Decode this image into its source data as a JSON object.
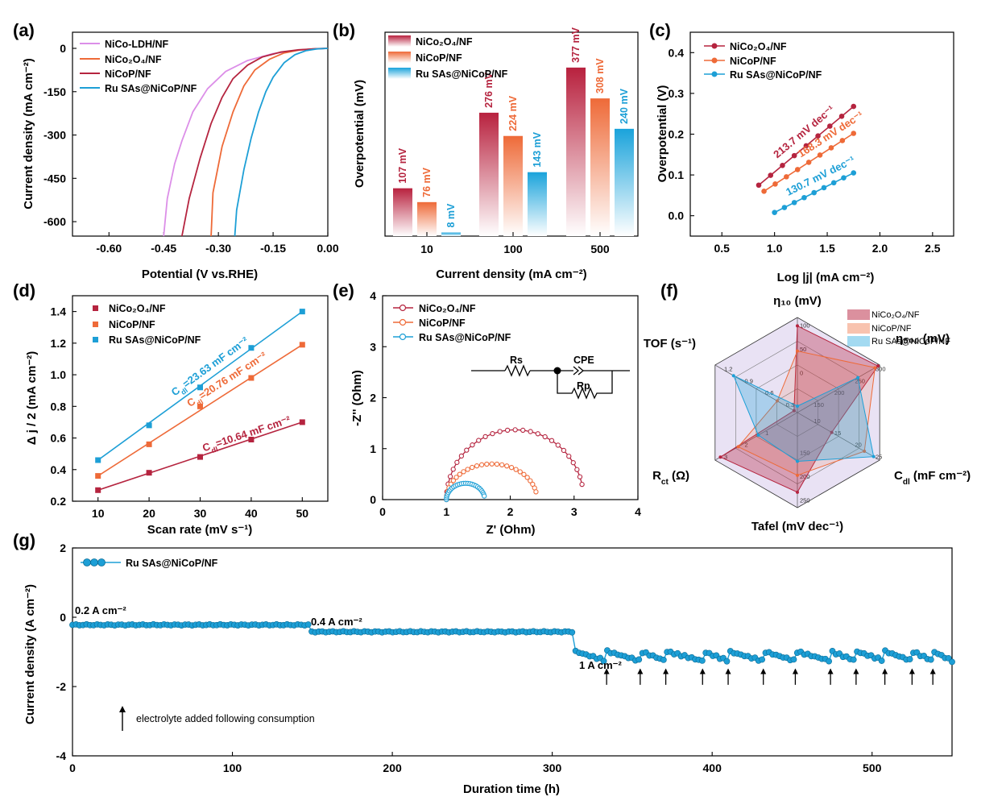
{
  "colors": {
    "nico2o4": "#b5243f",
    "nicop": "#ee6a38",
    "ru": "#1d9fd6",
    "ldh": "#dc8fe8"
  },
  "panels": {
    "a": {
      "label": "(a)",
      "xlabel": "Potential (V vs.RHE)",
      "ylabel": "Current density (mA cm⁻²)",
      "legend": [
        "NiCo-LDH/NF",
        "NiCo₂O₄/NF",
        "NiCoP/NF",
        "Ru SAs@NiCoP/NF"
      ]
    },
    "b": {
      "label": "(b)",
      "xlabel": "Current density (mA cm⁻²)",
      "ylabel": "Overpotential (mV)",
      "legend": [
        "NiCo₂O₄/NF",
        "NiCoP/NF",
        "Ru SAs@NiCoP/NF"
      ]
    },
    "c": {
      "label": "(c)",
      "xlabel": "Log |j| (mA cm⁻²)",
      "ylabel": "Overpotential (V)",
      "legend": [
        "NiCo₂O₄/NF",
        "NiCoP/NF",
        "Ru SAs@NiCoP/NF"
      ]
    },
    "d": {
      "label": "(d)",
      "xlabel": "Scan rate (mV s⁻¹)",
      "ylabel": "Δ j / 2 (mA cm⁻²)",
      "legend": [
        "NiCo₂O₄/NF",
        "NiCoP/NF",
        "Ru SAs@NiCoP/NF"
      ]
    },
    "e": {
      "label": "(e)",
      "xlabel": "Z' (Ohm)",
      "ylabel": "-Z'' (Ohm)",
      "legend": [
        "NiCo₂O₄/NF",
        "NiCoP/NF",
        "Ru SAs@NiCoP/NF"
      ],
      "circuit": {
        "rs": "Rs",
        "cpe": "CPE",
        "rp": "Rp"
      }
    },
    "f": {
      "label": "(f)",
      "legend": [
        "NiCo₂O₄/NF",
        "NiCoP/NF",
        "Ru SAs@NiCoP/NF"
      ]
    },
    "g": {
      "label": "(g)",
      "xlabel": "Duration time (h)",
      "ylabel": "Current density (A cm⁻²)",
      "legend": [
        "Ru SAs@NiCoP/NF"
      ],
      "steps": [
        "0.2 A  cm⁻²",
        "0.4 A  cm⁻²",
        "1 A  cm⁻²"
      ],
      "note": "electrolyte added following consumption"
    }
  },
  "chart_data": [
    {
      "panel": "a",
      "type": "line",
      "xlabel": "Potential (V vs.RHE)",
      "ylabel": "Current density (mA cm⁻²)",
      "xlim": [
        -0.7,
        0.0
      ],
      "ylim": [
        -650,
        0
      ],
      "xticks": [
        -0.6,
        -0.45,
        -0.3,
        -0.15,
        0.0
      ],
      "yticks": [
        0,
        -150,
        -300,
        -450,
        -600
      ],
      "series": [
        {
          "name": "NiCo-LDH/NF",
          "x": [
            -0.45,
            -0.44,
            -0.42,
            -0.4,
            -0.37,
            -0.33,
            -0.28,
            -0.22,
            -0.15,
            -0.08,
            -0.03,
            0.0
          ],
          "y": [
            -650,
            -520,
            -400,
            -320,
            -220,
            -140,
            -80,
            -42,
            -18,
            -6,
            -2,
            0
          ]
        },
        {
          "name": "NiCo₂O₄/NF",
          "x": [
            -0.32,
            -0.315,
            -0.29,
            -0.26,
            -0.23,
            -0.2,
            -0.16,
            -0.12,
            -0.08,
            -0.04,
            0.0
          ],
          "y": [
            -650,
            -500,
            -340,
            -220,
            -130,
            -75,
            -38,
            -16,
            -6,
            -2,
            0
          ]
        },
        {
          "name": "NiCoP/NF",
          "x": [
            -0.4,
            -0.38,
            -0.35,
            -0.32,
            -0.29,
            -0.26,
            -0.22,
            -0.18,
            -0.13,
            -0.08,
            -0.03,
            0.0
          ],
          "y": [
            -650,
            -520,
            -380,
            -260,
            -170,
            -105,
            -58,
            -30,
            -13,
            -5,
            -1,
            0
          ]
        },
        {
          "name": "Ru SAs@NiCoP/NF",
          "x": [
            -0.255,
            -0.25,
            -0.23,
            -0.21,
            -0.19,
            -0.17,
            -0.15,
            -0.12,
            -0.09,
            -0.06,
            -0.03,
            0.0
          ],
          "y": [
            -650,
            -560,
            -420,
            -310,
            -220,
            -150,
            -100,
            -50,
            -22,
            -8,
            -2,
            0
          ]
        }
      ]
    },
    {
      "panel": "b",
      "type": "bar",
      "categories": [
        "10",
        "100",
        "500"
      ],
      "xlabel": "Current density (mA cm⁻²)",
      "ylabel": "Overpotential (mV)",
      "ylim": [
        0,
        420
      ],
      "series": [
        {
          "name": "NiCo₂O₄/NF",
          "values": [
            107,
            276,
            377
          ],
          "labels": [
            "107 mV",
            "276 mV",
            "377 mV"
          ]
        },
        {
          "name": "NiCoP/NF",
          "values": [
            76,
            224,
            308
          ],
          "labels": [
            "76 mV",
            "224 mV",
            "308 mV"
          ]
        },
        {
          "name": "Ru SAs@NiCoP/NF",
          "values": [
            8,
            143,
            240
          ],
          "labels": [
            "8 mV",
            "143 mV",
            "240 mV"
          ]
        }
      ]
    },
    {
      "panel": "c",
      "type": "line",
      "xlabel": "Log |j| (mA cm⁻²)",
      "ylabel": "Overpotential (V)",
      "xlim": [
        0.2,
        2.7
      ],
      "ylim": [
        -0.05,
        0.45
      ],
      "xticks": [
        0.5,
        1.0,
        1.5,
        2.0,
        2.5
      ],
      "yticks": [
        0.0,
        0.1,
        0.2,
        0.3,
        0.4
      ],
      "series": [
        {
          "name": "NiCo₂O₄/NF",
          "x": [
            0.85,
            1.75
          ],
          "y": [
            0.075,
            0.268
          ],
          "slope_label": "213.7 mV dec⁻¹"
        },
        {
          "name": "NiCoP/NF",
          "x": [
            0.9,
            1.75
          ],
          "y": [
            0.06,
            0.202
          ],
          "slope_label": "168.3 mV dec⁻¹"
        },
        {
          "name": "Ru SAs@NiCoP/NF",
          "x": [
            1.0,
            1.75
          ],
          "y": [
            0.008,
            0.105
          ],
          "slope_label": "130.7 mV dec⁻¹"
        }
      ]
    },
    {
      "panel": "d",
      "type": "scatter",
      "xlabel": "Scan rate (mV s⁻¹)",
      "ylabel": "Δ j / 2 (mA cm⁻²)",
      "xlim": [
        5,
        55
      ],
      "ylim": [
        0.2,
        1.5
      ],
      "xticks": [
        10,
        20,
        30,
        40,
        50
      ],
      "yticks": [
        0.2,
        0.4,
        0.6,
        0.8,
        1.0,
        1.2,
        1.4
      ],
      "x": [
        10,
        20,
        30,
        40,
        50
      ],
      "series": [
        {
          "name": "NiCo₂O₄/NF",
          "values": [
            0.27,
            0.38,
            0.48,
            0.59,
            0.7
          ],
          "fit_label": "C_dl=10.64 mF cm⁻²"
        },
        {
          "name": "NiCoP/NF",
          "values": [
            0.36,
            0.56,
            0.8,
            0.98,
            1.19
          ],
          "fit_label": "C_dl=20.76 mF cm⁻²"
        },
        {
          "name": "Ru SAs@NiCoP/NF",
          "values": [
            0.46,
            0.68,
            0.92,
            1.17,
            1.4
          ],
          "fit_label": "C_dl=23.63 mF cm⁻²"
        }
      ]
    },
    {
      "panel": "e",
      "type": "scatter",
      "xlabel": "Z' (Ohm)",
      "ylabel": "-Z'' (Ohm)",
      "xlim": [
        0,
        4
      ],
      "ylim": [
        0,
        4
      ],
      "xticks": [
        0,
        1,
        2,
        3,
        4
      ],
      "yticks": [
        0,
        1,
        2,
        3,
        4
      ],
      "series": [
        {
          "name": "NiCo₂O₄/NF",
          "z_start": 1.0,
          "z_end": 3.15,
          "peak": 1.37
        },
        {
          "name": "NiCoP/NF",
          "z_start": 1.0,
          "z_end": 2.42,
          "peak": 0.7
        },
        {
          "name": "Ru SAs@NiCoP/NF",
          "z_start": 1.0,
          "z_end": 1.6,
          "peak": 0.32
        }
      ]
    },
    {
      "panel": "f",
      "type": "radar",
      "axes": [
        {
          "name": "η₁₀ (mV)",
          "ticks": [
            "100",
            "50",
            "0"
          ]
        },
        {
          "name": "η₅₀₀ (mV)",
          "ticks": [
            "300",
            "250",
            "200",
            "150"
          ]
        },
        {
          "name": "C_dl (mF cm⁻²)",
          "ticks": [
            "25",
            "20",
            "15",
            "10"
          ]
        },
        {
          "name": "Tafel (mV dec⁻¹)",
          "ticks": [
            "250",
            "200",
            "150"
          ]
        },
        {
          "name": "R_ct (Ω)",
          "ticks": [
            "3",
            "2",
            "1"
          ]
        },
        {
          "name": "TOF (s⁻¹)",
          "ticks": [
            "1.2",
            "0.9",
            "0.6",
            "0.3"
          ]
        }
      ],
      "series": [
        {
          "name": "NiCo₂O₄/NF",
          "values": [
            107,
            377,
            10.64,
            213.7,
            3.15,
            0.05
          ]
        },
        {
          "name": "NiCoP/NF",
          "values": [
            76,
            308,
            20.76,
            168.3,
            2.42,
            0.3
          ]
        },
        {
          "name": "Ru SAs@NiCoP/NF",
          "values": [
            8,
            240,
            23.63,
            130.7,
            1.6,
            0.95
          ]
        }
      ]
    },
    {
      "panel": "g",
      "type": "line",
      "xlabel": "Duration time (h)",
      "ylabel": "Current density (A cm⁻²)",
      "xlim": [
        0,
        550
      ],
      "ylim": [
        -4,
        2
      ],
      "xticks": [
        0,
        100,
        200,
        300,
        400,
        500
      ],
      "yticks": [
        2,
        0,
        -2,
        -4
      ],
      "series": [
        {
          "name": "Ru SAs@NiCoP/NF",
          "segments": [
            {
              "from": 0,
              "to": 148,
              "value": -0.22,
              "label": "0.2 A  cm⁻²"
            },
            {
              "from": 148,
              "to": 314,
              "value": -0.42,
              "label": "0.4 A  cm⁻²"
            },
            {
              "from": 314,
              "to": 550,
              "value": -1.12,
              "label": "1 A  cm⁻²"
            }
          ],
          "electrolyte_added_h": [
            334,
            355,
            371,
            394,
            410,
            432,
            452,
            474,
            490,
            508,
            525,
            538
          ]
        }
      ]
    }
  ]
}
